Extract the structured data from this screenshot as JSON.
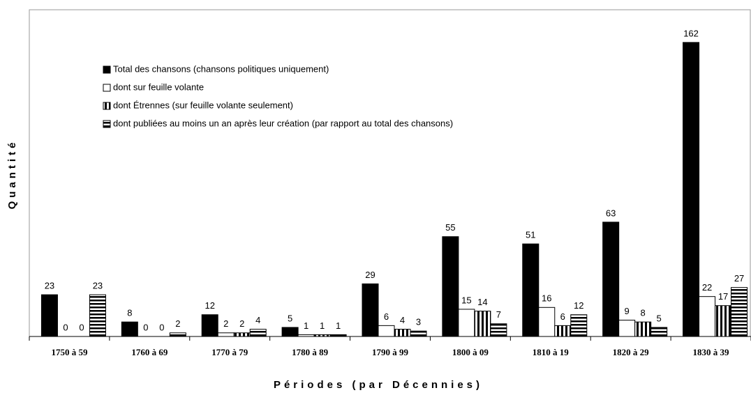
{
  "chart_data": {
    "type": "bar",
    "xlabel": "Périodes (par Décennies)",
    "ylabel": "Quantité",
    "categories": [
      "1750 à 59",
      "1760 à 69",
      "1770 à 79",
      "1780 à 89",
      "1790 à 99",
      "1800 à 09",
      "1810 à 19",
      "1820 à 29",
      "1830 à 39"
    ],
    "series": [
      {
        "name": "Total des chansons (chansons politiques uniquement)",
        "color": "#000000",
        "pattern": "solid",
        "values": [
          23,
          8,
          12,
          5,
          29,
          55,
          51,
          63,
          162
        ]
      },
      {
        "name": "dont sur feuille volante",
        "color": "#ffffff",
        "pattern": "solid",
        "values": [
          0,
          0,
          2,
          1,
          6,
          15,
          16,
          9,
          22
        ]
      },
      {
        "name": "dont Étrennes (sur feuille volante seulement)",
        "color": "#000000",
        "pattern": "vertical-stripes",
        "values": [
          0,
          0,
          2,
          1,
          4,
          14,
          6,
          8,
          17
        ]
      },
      {
        "name": "dont publiées au moins un an après leur création (par rapport au total des chansons)",
        "color": "#000000",
        "pattern": "horizontal-stripes",
        "values": [
          23,
          2,
          4,
          1,
          3,
          7,
          12,
          5,
          27
        ]
      }
    ],
    "ylim": [
      0,
      180
    ],
    "legend": "upper-left",
    "data_labels": true
  }
}
